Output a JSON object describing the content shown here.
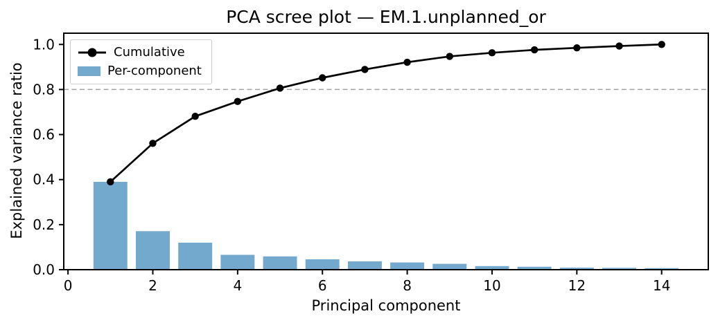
{
  "chart": {
    "title": "PCA scree plot — EM.1.unplanned_or",
    "xlabel": "Principal component",
    "ylabel": "Explained variance ratio"
  },
  "legend": {
    "items": [
      {
        "label": "Cumulative",
        "icon": "line-with-circle-marker",
        "color": "#000000"
      },
      {
        "label": "Per-component",
        "icon": "filled-swatch",
        "color": "#74a9ce"
      }
    ],
    "position": "upper left"
  },
  "chart_data": {
    "type": "bar",
    "title": "PCA scree plot — EM.1.unplanned_or",
    "xlabel": "Principal component",
    "ylabel": "Explained variance ratio",
    "x": [
      1,
      2,
      3,
      4,
      5,
      6,
      7,
      8,
      9,
      10,
      11,
      12,
      13,
      14
    ],
    "series": [
      {
        "name": "Per-component",
        "type": "bar",
        "color": "#74a9ce",
        "values": [
          0.39,
          0.171,
          0.12,
          0.066,
          0.059,
          0.046,
          0.037,
          0.032,
          0.026,
          0.016,
          0.013,
          0.009,
          0.008,
          0.007
        ]
      },
      {
        "name": "Cumulative",
        "type": "line",
        "color": "#000000",
        "marker": "circle",
        "values": [
          0.39,
          0.561,
          0.681,
          0.747,
          0.806,
          0.852,
          0.889,
          0.921,
          0.947,
          0.963,
          0.976,
          0.985,
          0.993,
          1.0
        ]
      }
    ],
    "threshold_line": {
      "y": 0.8,
      "style": "dashed",
      "color": "#a0a0a0"
    },
    "x_ticks": [
      0,
      2,
      4,
      6,
      8,
      10,
      12,
      14
    ],
    "y_ticks": [
      0.0,
      0.2,
      0.4,
      0.6,
      0.8,
      1.0
    ],
    "xlim": [
      -0.1,
      15.1
    ],
    "ylim": [
      0,
      1.05
    ],
    "bar_width": 0.8,
    "grid": false,
    "frame": true,
    "colors": {
      "bar": "#74a9ce",
      "line": "#000000",
      "threshold": "#a0a0a0",
      "axis": "#000000"
    }
  }
}
